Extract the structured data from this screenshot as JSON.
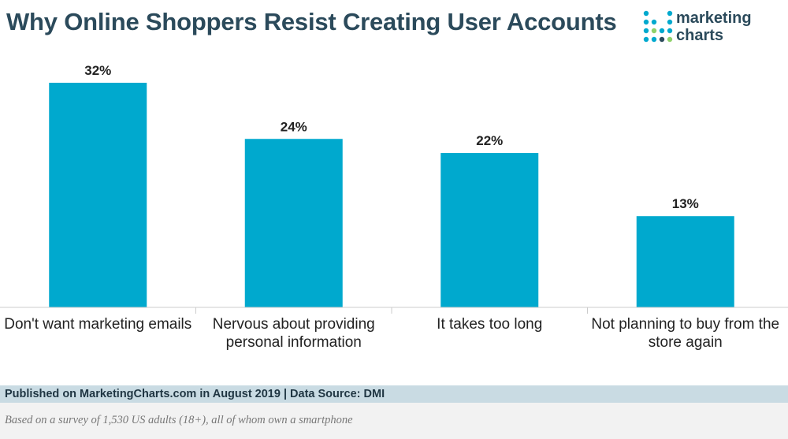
{
  "header": {
    "title": "Why Online Shoppers Resist Creating User Accounts"
  },
  "logo": {
    "text": "marketing\ncharts",
    "dot_colors": [
      "#00a9ce",
      "#2b4a5b",
      "#8fd16a"
    ]
  },
  "chart_data": {
    "type": "bar",
    "title": "Why Online Shoppers Resist Creating User Accounts",
    "xlabel": "",
    "ylabel": "",
    "categories": [
      "Don't want marketing emails",
      "Nervous about providing personal information",
      "It takes too long",
      "Not planning to buy from the store again"
    ],
    "values": [
      32,
      24,
      22,
      13
    ],
    "value_labels": [
      "32%",
      "24%",
      "22%",
      "13%"
    ],
    "ylim": [
      0,
      32
    ],
    "unit": "%",
    "bar_color": "#00a9ce",
    "grid": false
  },
  "footer": {
    "source": "Published on MarketingCharts.com in August 2019 | Data Source: DMI",
    "note": "Based on a survey of 1,530 US adults (18+), all of whom own a smartphone"
  }
}
